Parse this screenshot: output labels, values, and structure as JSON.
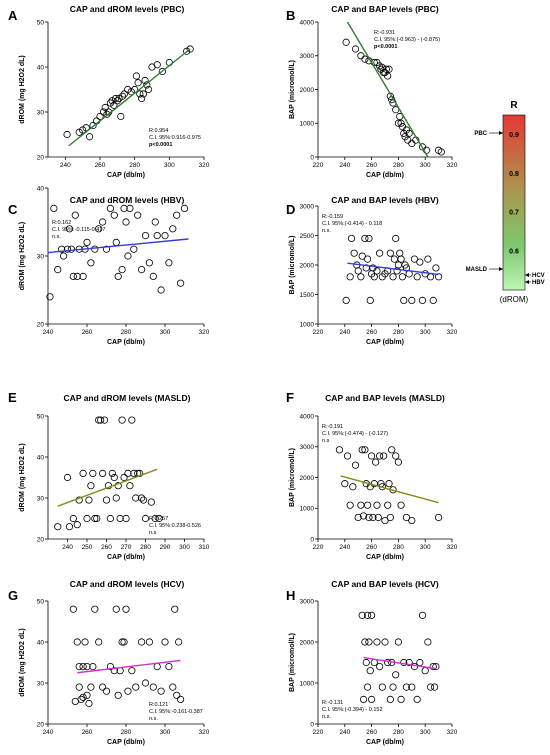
{
  "chart_data": [
    {
      "type": "scatter",
      "letter": "A",
      "title": "CAP and dROM levels (PBC)",
      "xlabel": "CAP (db/m)",
      "ylabel": "dROM (mg H2O2 dL)",
      "xlim": [
        230,
        320
      ],
      "ylim": [
        20,
        50
      ],
      "xticks": [
        240,
        260,
        280,
        300,
        320
      ],
      "yticks": [
        20,
        30,
        40,
        50
      ],
      "line_color": "#2e7d32",
      "fit": [
        [
          242,
          22.5
        ],
        [
          312,
          44
        ]
      ],
      "stats": [
        "R:0.954",
        "C.I. 95%:0.916-0.975",
        "p<0.0001"
      ],
      "stats_bold": [
        false,
        false,
        true
      ],
      "x": [
        241,
        248,
        250,
        252,
        254,
        256,
        258,
        260,
        262,
        263,
        264,
        265,
        266,
        267,
        268,
        269,
        270,
        271,
        272,
        273,
        274,
        276,
        278,
        280,
        281,
        282,
        283,
        284,
        285,
        286,
        287,
        288,
        290,
        293,
        296,
        300,
        310,
        312
      ],
      "y": [
        25,
        25.5,
        26,
        26.5,
        24.5,
        27,
        28,
        29,
        30,
        31,
        29.5,
        30,
        32,
        32.5,
        31.5,
        33,
        32.5,
        33,
        29,
        33.5,
        34,
        35,
        34.5,
        35,
        38,
        36.5,
        34,
        33,
        34,
        37,
        36,
        35,
        40,
        40.5,
        39,
        41,
        43.5,
        44
      ]
    },
    {
      "type": "scatter",
      "letter": "B",
      "title": "CAP and BAP levels (PBC)",
      "xlabel": "CAP (db/m)",
      "ylabel": "BAP (micromol/L)",
      "xlim": [
        220,
        320
      ],
      "ylim": [
        0,
        4000
      ],
      "xticks": [
        220,
        240,
        260,
        280,
        300,
        320
      ],
      "yticks": [
        0,
        1000,
        2000,
        3000,
        4000
      ],
      "line_color": "#2e7d32",
      "fit": [
        [
          242,
          4000
        ],
        [
          302,
          0
        ]
      ],
      "stats": [
        "R:-0.931",
        "C.I. 95%:(-0.963) -  (-0.875)",
        "p<0.0001"
      ],
      "stats_bold": [
        false,
        false,
        true
      ],
      "x": [
        241,
        248,
        252,
        255,
        258,
        262,
        264,
        266,
        267,
        268,
        269,
        270,
        271,
        272,
        273,
        274,
        275,
        276,
        278,
        280,
        281,
        282,
        283,
        284,
        285,
        286,
        287,
        288,
        290,
        293,
        298,
        301,
        310,
        312
      ],
      "y": [
        3400,
        3200,
        3000,
        2900,
        2850,
        2800,
        2800,
        2700,
        2600,
        2650,
        2500,
        2500,
        2600,
        2400,
        2600,
        1800,
        1700,
        1600,
        1400,
        1000,
        1200,
        1000,
        900,
        700,
        600,
        800,
        500,
        700,
        400,
        500,
        300,
        200,
        200,
        150
      ]
    },
    {
      "type": "scatter",
      "letter": "C",
      "title": "CAP and dROM levels (HBV)",
      "xlabel": "CAP (db/m)",
      "ylabel": "dROM (mg H2O2 dL)",
      "xlim": [
        240,
        320
      ],
      "ylim": [
        20,
        40
      ],
      "xticks": [
        240,
        260,
        280,
        300,
        320
      ],
      "yticks": [
        20,
        30,
        40
      ],
      "line_color": "#3a3ad6",
      "fit": [
        [
          240,
          30.5
        ],
        [
          312,
          32.5
        ]
      ],
      "stats": [
        "R:0.162",
        "C.I. 95%:-0.115-0.417",
        "n.s."
      ],
      "stats_bold": [
        false,
        false,
        false
      ],
      "x": [
        241,
        243,
        245,
        247,
        248,
        250,
        251,
        252,
        253,
        254,
        255,
        256,
        258,
        259,
        260,
        262,
        264,
        266,
        268,
        270,
        272,
        274,
        275,
        276,
        278,
        279,
        280,
        281,
        282,
        284,
        286,
        288,
        290,
        292,
        294,
        295,
        296,
        298,
        300,
        302,
        304,
        306,
        308,
        310
      ],
      "y": [
        24,
        37,
        28,
        31,
        30,
        31,
        34,
        31,
        27,
        36,
        27,
        31,
        27,
        31,
        32,
        29,
        31,
        34,
        35,
        31,
        37,
        36,
        32,
        27,
        28,
        37,
        35,
        30,
        37,
        31,
        36,
        28,
        33,
        29,
        27,
        35,
        33,
        25,
        33,
        29,
        34,
        36,
        26,
        37
      ]
    },
    {
      "type": "scatter",
      "letter": "D",
      "title": "CAP and BAP levels (HBV)",
      "xlabel": "CAP (db/m)",
      "ylabel": "BAP (micromol/L)",
      "xlim": [
        220,
        320
      ],
      "ylim": [
        1000,
        3000
      ],
      "xticks": [
        220,
        240,
        260,
        280,
        300,
        320
      ],
      "yticks": [
        1000,
        1500,
        2000,
        2500,
        3000
      ],
      "line_color": "#3a3ad6",
      "fit": [
        [
          242,
          2030
        ],
        [
          310,
          1840
        ]
      ],
      "stats": [
        "R:-0.159",
        "C.I. 95%:(-0.414) -  0.118",
        "n.s."
      ],
      "stats_bold": [
        false,
        false,
        false
      ],
      "x": [
        241,
        244,
        245,
        247,
        249,
        250,
        252,
        253,
        255,
        256,
        257,
        258,
        259,
        260,
        261,
        262,
        264,
        266,
        268,
        270,
        272,
        274,
        276,
        277,
        278,
        279,
        280,
        281,
        282,
        283,
        284,
        285,
        286,
        288,
        290,
        292,
        294,
        296,
        298,
        300,
        302,
        304,
        306,
        308,
        310
      ],
      "y": [
        1400,
        1800,
        2450,
        2200,
        2000,
        1900,
        1800,
        2150,
        2450,
        1950,
        2100,
        2450,
        1400,
        1850,
        1950,
        1800,
        1900,
        2200,
        1800,
        1850,
        1900,
        2200,
        1800,
        2100,
        2450,
        1900,
        2000,
        2200,
        2100,
        1800,
        1400,
        2000,
        1950,
        1850,
        1400,
        2100,
        1800,
        2050,
        1400,
        1850,
        2100,
        1800,
        1400,
        1950,
        1800
      ]
    },
    {
      "type": "scatter",
      "letter": "E",
      "title": "CAP and dROM levels (MASLD)",
      "xlabel": "CAP (db/m)",
      "ylabel": "dROM (mg H2O2 dL)",
      "xlim": [
        230,
        310
      ],
      "ylim": [
        20,
        50
      ],
      "xticks": [
        240,
        250,
        260,
        270,
        280,
        290,
        300,
        310
      ],
      "yticks": [
        20,
        30,
        40,
        50
      ],
      "line_color": "#8a8a14",
      "fit": [
        [
          235,
          28
        ],
        [
          286,
          37
        ]
      ],
      "stats": [
        "R:0.257",
        "C.I. 95%:0.238-0.526",
        "n.s"
      ],
      "stats_bold": [
        false,
        false,
        false
      ],
      "x": [
        235,
        240,
        241,
        243,
        245,
        246,
        248,
        250,
        251,
        252,
        253,
        254,
        255,
        256,
        257,
        258,
        259,
        260,
        261,
        262,
        263,
        264,
        265,
        266,
        267,
        268,
        269,
        270,
        271,
        272,
        273,
        274,
        275,
        276,
        277,
        278,
        279,
        280,
        283,
        285,
        287
      ],
      "y": [
        23,
        35,
        23,
        25,
        23.5,
        29.5,
        36,
        25,
        29.5,
        33,
        36,
        25,
        25,
        49,
        49,
        36,
        49,
        29.5,
        33,
        25,
        36,
        35,
        30,
        33,
        25,
        49,
        35,
        25,
        36,
        33,
        49,
        36,
        30,
        36,
        36,
        30,
        29.5,
        25,
        29,
        25,
        25
      ]
    },
    {
      "type": "scatter",
      "letter": "F",
      "title": "CAP and BAP levels (MASLD)",
      "xlabel": "CAP (db/m)",
      "ylabel": "BAP (micromol/L)",
      "xlim": [
        220,
        320
      ],
      "ylim": [
        0,
        4000
      ],
      "xticks": [
        220,
        240,
        260,
        280,
        300,
        320
      ],
      "yticks": [
        0,
        1000,
        2000,
        3000,
        4000
      ],
      "line_color": "#8a8a14",
      "fit": [
        [
          237,
          2050
        ],
        [
          310,
          1180
        ]
      ],
      "stats": [
        "R:-0.191",
        "C.I. 95%:(-0.474) -  (-0.127)",
        "n.s"
      ],
      "stats_bold": [
        false,
        false,
        false
      ],
      "x": [
        236,
        240,
        242,
        244,
        246,
        248,
        250,
        252,
        253,
        254,
        255,
        256,
        257,
        258,
        259,
        260,
        261,
        262,
        263,
        264,
        265,
        266,
        267,
        268,
        269,
        270,
        272,
        273,
        274,
        275,
        276,
        278,
        280,
        282,
        286,
        290,
        310
      ],
      "y": [
        2900,
        1800,
        2700,
        1100,
        1700,
        2400,
        700,
        1100,
        2900,
        750,
        2900,
        1800,
        1100,
        700,
        1700,
        2700,
        700,
        1800,
        2500,
        1100,
        700,
        2700,
        1800,
        1700,
        2700,
        600,
        1100,
        1800,
        700,
        2900,
        1600,
        2700,
        2500,
        1100,
        700,
        600,
        700
      ]
    },
    {
      "type": "scatter",
      "letter": "G",
      "title": "CAP and dROM levels (HCV)",
      "xlabel": "CAP (db/m)",
      "ylabel": "dROM (mg H2O2 dL)",
      "xlim": [
        240,
        320
      ],
      "ylim": [
        20,
        50
      ],
      "xticks": [
        240,
        260,
        280,
        300,
        320
      ],
      "yticks": [
        20,
        30,
        40,
        50
      ],
      "line_color": "#cc33cc",
      "fit": [
        [
          255,
          32.5
        ],
        [
          308,
          35.5
        ]
      ],
      "stats": [
        "R:0.121",
        "C.I. 95%:-0.161-0.387",
        "n.s."
      ],
      "stats_bold": [
        false,
        false,
        false
      ],
      "x": [
        253,
        254,
        255,
        256,
        256,
        257,
        258,
        258,
        259,
        260,
        260,
        261,
        262,
        263,
        264,
        266,
        268,
        270,
        272,
        274,
        275,
        276,
        277,
        278,
        279,
        280,
        281,
        283,
        285,
        288,
        290,
        292,
        294,
        296,
        298,
        300,
        302,
        304,
        305,
        306,
        307,
        308
      ],
      "y": [
        48,
        25.5,
        40,
        34,
        29,
        26,
        34,
        26.5,
        40,
        34,
        27,
        25,
        29,
        34,
        48,
        40,
        29,
        28,
        34,
        33,
        48,
        27,
        33,
        40,
        40,
        48,
        28,
        33,
        29,
        40,
        30,
        40,
        29,
        34,
        28,
        40,
        34,
        29,
        48,
        27,
        40,
        26
      ]
    },
    {
      "type": "scatter",
      "letter": "H",
      "title": "CAP and BAP levels (HCV)",
      "xlabel": "CAP (db/m)",
      "ylabel": "BAP (micromol/L)",
      "xlim": [
        220,
        320
      ],
      "ylim": [
        0,
        3000
      ],
      "xticks": [
        220,
        240,
        260,
        280,
        300,
        320
      ],
      "yticks": [
        0,
        1000,
        2000,
        3000
      ],
      "line_color": "#cc33cc",
      "fit": [
        [
          254,
          1620
        ],
        [
          308,
          1350
        ]
      ],
      "stats": [
        "R:-0.131",
        "C.I. 95%:(-0.394) -  0.152",
        "n.s."
      ],
      "stats_bold": [
        false,
        false,
        false
      ],
      "x": [
        253,
        254,
        255,
        256,
        257,
        257,
        258,
        259,
        260,
        260,
        262,
        264,
        266,
        268,
        270,
        272,
        274,
        275,
        276,
        278,
        280,
        282,
        284,
        286,
        288,
        290,
        292,
        294,
        296,
        298,
        300,
        302,
        304,
        306,
        307,
        308
      ],
      "y": [
        2650,
        600,
        2000,
        1500,
        2650,
        900,
        2000,
        1300,
        2650,
        600,
        1500,
        2000,
        1400,
        900,
        2000,
        1500,
        600,
        1500,
        900,
        1200,
        2000,
        600,
        1500,
        900,
        1500,
        900,
        1400,
        600,
        1500,
        2650,
        1300,
        2000,
        900,
        1400,
        900,
        1400
      ]
    }
  ],
  "colorbar": {
    "title": "R",
    "range": [
      0.5,
      0.95
    ],
    "ticks": [
      "0.9",
      "0.8",
      "0.7",
      "0.6"
    ],
    "tick_values": [
      0.9,
      0.8,
      0.7,
      0.6
    ],
    "colors": [
      "#e53935",
      "#7cc96e",
      "#bff5b6"
    ],
    "markers": [
      {
        "label": "PBC",
        "value": 0.954,
        "side": "left"
      },
      {
        "label": "MASLD",
        "value": 0.257,
        "side": "left"
      },
      {
        "label": "HCV",
        "value": 0.121,
        "side": "right"
      },
      {
        "label": "HBV",
        "value": 0.162,
        "side": "right"
      }
    ],
    "subtitle": "(dROM)"
  }
}
